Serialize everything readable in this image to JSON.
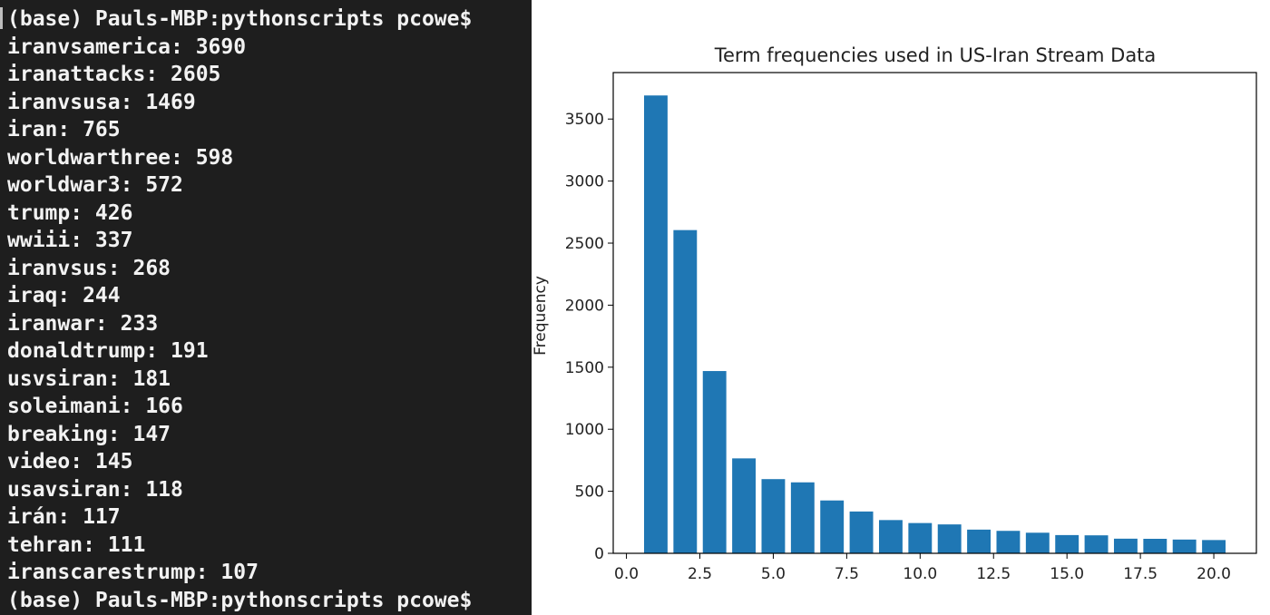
{
  "terminal": {
    "prompt": "(base) Pauls-MBP:pythonscripts pcowe$",
    "entries": [
      "iranvsamerica: 3690",
      "iranattacks: 2605",
      "iranvsusa: 1469",
      "iran: 765",
      "worldwarthree: 598",
      "worldwar3: 572",
      "trump: 426",
      "wwiii: 337",
      "iranvsus: 268",
      "iraq: 244",
      "iranwar: 233",
      "donaldtrump: 191",
      "usvsiran: 181",
      "soleimani: 166",
      "breaking: 147",
      "video: 145",
      "usavsiran: 118",
      "irán: 117",
      "tehran: 111",
      "iranscarestrump: 107"
    ],
    "background": "#1e1e1e",
    "text_color": "#f2f2f2"
  },
  "chart_data": {
    "type": "bar",
    "title": "Term frequencies used in US-Iran Stream Data",
    "xlabel": "",
    "ylabel": "Frequency",
    "x": [
      1,
      2,
      3,
      4,
      5,
      6,
      7,
      8,
      9,
      10,
      11,
      12,
      13,
      14,
      15,
      16,
      17,
      18,
      19,
      20
    ],
    "values": [
      3690,
      2605,
      1469,
      765,
      598,
      572,
      426,
      337,
      268,
      244,
      233,
      191,
      181,
      166,
      147,
      145,
      118,
      117,
      111,
      107
    ],
    "xlim": [
      -0.45,
      21.45
    ],
    "ylim": [
      0,
      3874.5
    ],
    "xticks": [
      0.0,
      2.5,
      5.0,
      7.5,
      10.0,
      12.5,
      15.0,
      17.5,
      20.0
    ],
    "xtick_labels": [
      "0.0",
      "2.5",
      "5.0",
      "7.5",
      "10.0",
      "12.5",
      "15.0",
      "17.5",
      "20.0"
    ],
    "yticks": [
      0,
      500,
      1000,
      1500,
      2000,
      2500,
      3000,
      3500
    ],
    "ytick_labels": [
      "0",
      "500",
      "1000",
      "1500",
      "2000",
      "2500",
      "3000",
      "3500"
    ],
    "bar_color": "#1f77b4",
    "grid": false,
    "legend": "none"
  }
}
